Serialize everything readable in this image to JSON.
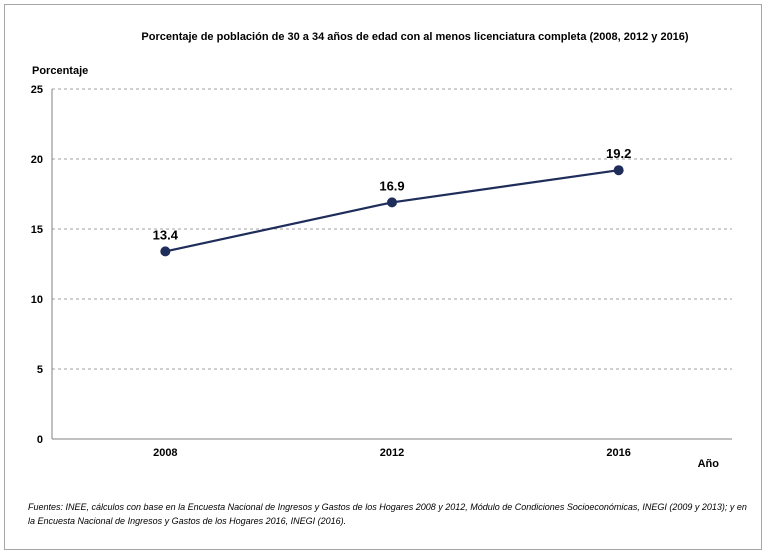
{
  "chart_data": {
    "type": "line",
    "title": "Porcentaje de población de 30 a 34 años de edad con al menos licenciatura completa (2008, 2012 y 2016)",
    "ylabel": "Porcentaje",
    "xlabel": "Año",
    "categories": [
      "2008",
      "2012",
      "2016"
    ],
    "series": [
      {
        "values": [
          13.4,
          16.9,
          19.2
        ],
        "labels": [
          "13.4",
          "16.9",
          "19.2"
        ]
      }
    ],
    "ylim": [
      0,
      25
    ],
    "yticks": [
      "0",
      "5",
      "10",
      "15",
      "20",
      "25"
    ],
    "grid": true,
    "legend": "none",
    "colors": {
      "line": "#1f2d5a",
      "grid": "#a0a0a0",
      "axis": "#808080"
    }
  },
  "source_note": "Fuentes: INEE, cálculos con base en la Encuesta Nacional de Ingresos y Gastos de los Hogares 2008 y 2012, Módulo de Condiciones Socioeconómicas, INEGI (2009 y 2013); y en la Encuesta Nacional de Ingresos y Gastos de los Hogares 2016, INEGI (2016)."
}
